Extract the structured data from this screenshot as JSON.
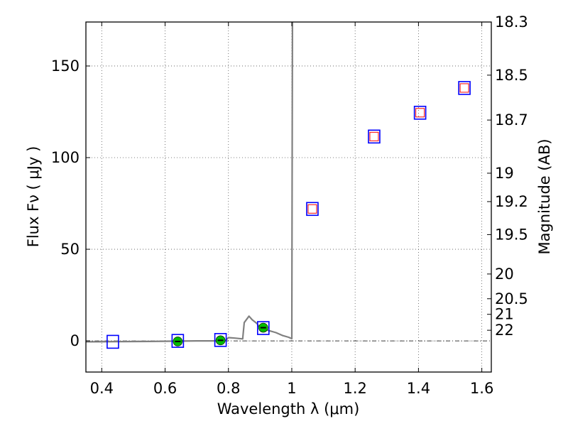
{
  "chart_data": {
    "type": "scatter",
    "title": "",
    "xlabel": "Wavelength  λ (μm)",
    "ylabel": "Flux  Fν  ( μJy )",
    "y2label": "Magnitude (AB)",
    "xlim": [
      0.35,
      1.63
    ],
    "ylim": [
      -17,
      174
    ],
    "grid": true,
    "x_ticks": [
      {
        "value": 0.4,
        "label": "0.4"
      },
      {
        "value": 0.6,
        "label": "0.6"
      },
      {
        "value": 0.8,
        "label": "0.8"
      },
      {
        "value": 1.0,
        "label": "1"
      },
      {
        "value": 1.2,
        "label": "1.2"
      },
      {
        "value": 1.4,
        "label": "1.4"
      },
      {
        "value": 1.6,
        "label": "1.6"
      }
    ],
    "y_ticks": [
      {
        "value": 0,
        "label": "0"
      },
      {
        "value": 50,
        "label": "50"
      },
      {
        "value": 100,
        "label": "100"
      },
      {
        "value": 150,
        "label": "150"
      }
    ],
    "y2_ticks": [
      {
        "label": "18.3",
        "flux": 174
      },
      {
        "label": "18.5",
        "flux": 145
      },
      {
        "label": "18.7",
        "flux": 120.5
      },
      {
        "label": "19",
        "flux": 91.5
      },
      {
        "label": "19.2",
        "flux": 76
      },
      {
        "label": "19.5",
        "flux": 58
      },
      {
        "label": "20",
        "flux": 36.5
      },
      {
        "label": "20.5",
        "flux": 23
      },
      {
        "label": "21",
        "flux": 14.5
      },
      {
        "label": "22",
        "flux": 5.8
      }
    ],
    "series": [
      {
        "marker": "open-square",
        "edge_color": "#0000ff",
        "points": [
          {
            "x": 0.435,
            "y": -0.5
          },
          {
            "x": 0.64,
            "y": 0
          },
          {
            "x": 0.775,
            "y": 0.5
          },
          {
            "x": 0.91,
            "y": 7
          },
          {
            "x": 1.065,
            "y": 72
          },
          {
            "x": 1.26,
            "y": 111.5
          },
          {
            "x": 1.405,
            "y": 124.5
          },
          {
            "x": 1.545,
            "y": 138
          }
        ]
      },
      {
        "marker": "open-square-small",
        "edge_color": "#ff0000",
        "points": [
          {
            "x": 1.065,
            "y": 72
          },
          {
            "x": 1.26,
            "y": 111.5
          },
          {
            "x": 1.405,
            "y": 124.5
          },
          {
            "x": 1.545,
            "y": 138
          }
        ]
      },
      {
        "marker": "filled-circle",
        "color": "#00bb00",
        "points": [
          {
            "x": 0.64,
            "y": -0.3
          },
          {
            "x": 0.775,
            "y": 0.3
          },
          {
            "x": 0.91,
            "y": 7.2
          }
        ]
      }
    ],
    "model_spectrum": {
      "color": "#808080",
      "points": [
        [
          0.35,
          -0.5
        ],
        [
          0.55,
          -0.3
        ],
        [
          0.7,
          0
        ],
        [
          0.79,
          0
        ],
        [
          0.8,
          1.8
        ],
        [
          0.82,
          1.5
        ],
        [
          0.845,
          1.1
        ],
        [
          0.85,
          10
        ],
        [
          0.865,
          13.5
        ],
        [
          0.875,
          11.5
        ],
        [
          0.89,
          9.5
        ],
        [
          0.9,
          7
        ],
        [
          0.93,
          5.5
        ],
        [
          0.95,
          4.5
        ],
        [
          0.97,
          3
        ],
        [
          0.99,
          2
        ],
        [
          1.0,
          1.2
        ],
        [
          1.002,
          174
        ]
      ]
    },
    "reference_line": {
      "y": 0,
      "style": "dash-dot",
      "color": "#000000"
    }
  }
}
